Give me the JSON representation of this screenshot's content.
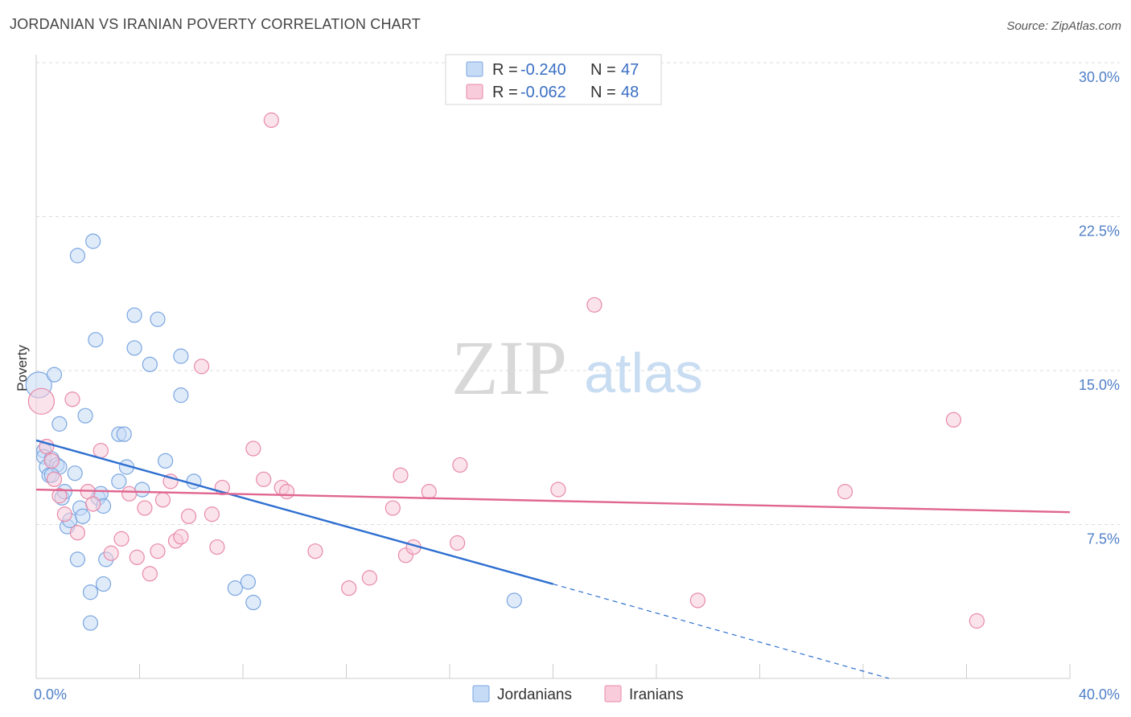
{
  "header": {
    "title": "JORDANIAN VS IRANIAN POVERTY CORRELATION CHART",
    "source": "Source: ZipAtlas.com"
  },
  "watermark": {
    "zip": "ZIP",
    "atlas": "atlas"
  },
  "chart_data": {
    "type": "scatter",
    "ylabel": "Poverty",
    "xlim": [
      0,
      40
    ],
    "ylim": [
      0,
      30
    ],
    "y_ticks": [
      {
        "value": 7.5,
        "label": "7.5%"
      },
      {
        "value": 15.0,
        "label": "15.0%"
      },
      {
        "value": 22.5,
        "label": "22.5%"
      },
      {
        "value": 30.0,
        "label": "30.0%"
      }
    ],
    "x_tick_labels": {
      "min": "0.0%",
      "max": "40.0%"
    },
    "grid": true,
    "legend": {
      "placement": "top-center",
      "entries": [
        {
          "r_label": "R =",
          "r_value": "-0.240",
          "n_label": "N =",
          "n_value": "47"
        },
        {
          "r_label": "R =",
          "r_value": "-0.062",
          "n_label": "N =",
          "n_value": "48"
        }
      ]
    },
    "series": [
      {
        "name": "Jordanians",
        "color": "#7aa6e0",
        "fill": "#c6dbf5",
        "trend": {
          "x0": 0,
          "y0": 11.6,
          "x1": 20,
          "y1": 4.6,
          "dash_to_x": 33,
          "dash_to_y": 0
        },
        "trend_color": "#2e6fd0",
        "points": [
          [
            0.1,
            14.3
          ],
          [
            0.3,
            11.1
          ],
          [
            0.3,
            10.8
          ],
          [
            0.4,
            10.3
          ],
          [
            0.5,
            9.9
          ],
          [
            0.6,
            10.7
          ],
          [
            0.7,
            14.8
          ],
          [
            0.8,
            10.4
          ],
          [
            0.9,
            10.3
          ],
          [
            0.9,
            12.4
          ],
          [
            1.0,
            8.8
          ],
          [
            1.1,
            9.1
          ],
          [
            1.2,
            7.4
          ],
          [
            1.3,
            7.7
          ],
          [
            1.5,
            10.0
          ],
          [
            1.6,
            20.6
          ],
          [
            1.6,
            5.8
          ],
          [
            1.7,
            8.3
          ],
          [
            1.8,
            7.9
          ],
          [
            1.9,
            12.8
          ],
          [
            2.1,
            4.2
          ],
          [
            2.1,
            2.7
          ],
          [
            2.2,
            21.3
          ],
          [
            2.3,
            16.5
          ],
          [
            2.4,
            8.8
          ],
          [
            2.5,
            9.0
          ],
          [
            2.6,
            8.4
          ],
          [
            2.6,
            4.6
          ],
          [
            2.7,
            5.8
          ],
          [
            3.2,
            9.6
          ],
          [
            3.2,
            11.9
          ],
          [
            3.4,
            11.9
          ],
          [
            3.5,
            10.3
          ],
          [
            3.8,
            17.7
          ],
          [
            3.8,
            16.1
          ],
          [
            4.1,
            9.2
          ],
          [
            4.4,
            15.3
          ],
          [
            4.7,
            17.5
          ],
          [
            5.0,
            10.6
          ],
          [
            5.6,
            13.8
          ],
          [
            5.6,
            15.7
          ],
          [
            6.1,
            9.6
          ],
          [
            7.7,
            4.4
          ],
          [
            8.2,
            4.7
          ],
          [
            8.4,
            3.7
          ],
          [
            18.5,
            3.8
          ],
          [
            0.6,
            9.9
          ]
        ]
      },
      {
        "name": "Iranians",
        "color": "#e88aa8",
        "fill": "#f8ccda",
        "trend": {
          "x0": 0,
          "y0": 9.2,
          "x1": 40,
          "y1": 8.1
        },
        "trend_color": "#e06690",
        "points": [
          [
            0.2,
            13.5
          ],
          [
            0.4,
            11.3
          ],
          [
            0.6,
            10.6
          ],
          [
            0.7,
            9.7
          ],
          [
            0.9,
            8.9
          ],
          [
            1.1,
            8.0
          ],
          [
            1.4,
            13.6
          ],
          [
            1.6,
            7.1
          ],
          [
            2.0,
            9.1
          ],
          [
            2.2,
            8.5
          ],
          [
            2.5,
            11.1
          ],
          [
            2.9,
            6.1
          ],
          [
            3.3,
            6.8
          ],
          [
            3.6,
            9.0
          ],
          [
            3.9,
            5.9
          ],
          [
            4.2,
            8.3
          ],
          [
            4.4,
            5.1
          ],
          [
            4.7,
            6.2
          ],
          [
            4.9,
            8.7
          ],
          [
            5.2,
            9.6
          ],
          [
            5.4,
            6.7
          ],
          [
            5.6,
            6.9
          ],
          [
            5.9,
            7.9
          ],
          [
            6.4,
            15.2
          ],
          [
            6.8,
            8.0
          ],
          [
            7.0,
            6.4
          ],
          [
            7.2,
            9.3
          ],
          [
            8.4,
            11.2
          ],
          [
            8.8,
            9.7
          ],
          [
            9.1,
            27.2
          ],
          [
            9.5,
            9.3
          ],
          [
            9.7,
            9.1
          ],
          [
            10.8,
            6.2
          ],
          [
            12.1,
            4.4
          ],
          [
            12.9,
            4.9
          ],
          [
            13.8,
            8.3
          ],
          [
            14.1,
            9.9
          ],
          [
            14.3,
            6.0
          ],
          [
            14.6,
            6.4
          ],
          [
            15.2,
            9.1
          ],
          [
            16.3,
            6.6
          ],
          [
            16.4,
            10.4
          ],
          [
            20.2,
            9.2
          ],
          [
            21.6,
            18.2
          ],
          [
            25.6,
            3.8
          ],
          [
            31.3,
            9.1
          ],
          [
            35.5,
            12.6
          ],
          [
            36.4,
            2.8
          ]
        ]
      }
    ]
  }
}
